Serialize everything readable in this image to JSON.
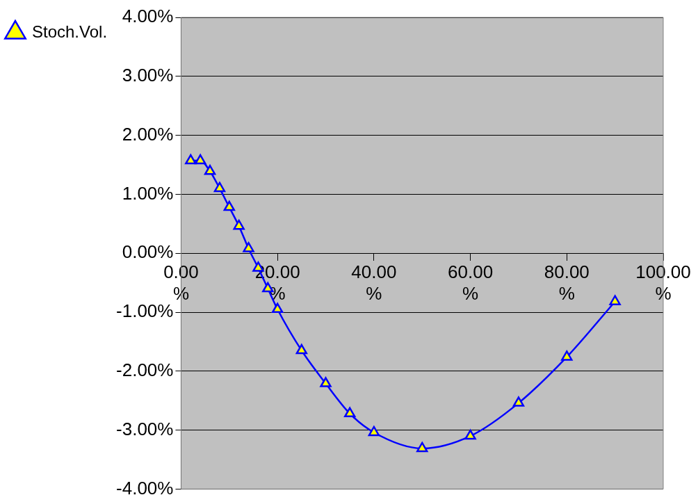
{
  "chart_data": {
    "type": "line",
    "x": [
      2,
      4,
      6,
      8,
      10,
      12,
      14,
      16,
      18,
      20,
      25,
      30,
      35,
      40,
      50,
      60,
      70,
      80,
      90
    ],
    "series": [
      {
        "name": "Stoch.Vol.",
        "color": "#0000ff",
        "values": [
          1.57,
          1.57,
          1.39,
          1.1,
          0.78,
          0.46,
          0.08,
          -0.25,
          -0.6,
          -0.95,
          -1.65,
          -2.21,
          -2.72,
          -3.04,
          -3.31,
          -3.1,
          -2.54,
          -1.76,
          -0.82
        ]
      }
    ],
    "xlim": [
      0,
      100
    ],
    "xticks": [
      {
        "value": 0,
        "label": "0.00%"
      },
      {
        "value": 20,
        "label": "20.00%"
      },
      {
        "value": 40,
        "label": "40.00%"
      },
      {
        "value": 60,
        "label": "60.00%"
      },
      {
        "value": 80,
        "label": "80.00%"
      },
      {
        "value": 100,
        "label": "100.00%"
      }
    ],
    "ylim": [
      -4,
      4
    ],
    "yticks": [
      {
        "value": -4,
        "label": "-4.00%"
      },
      {
        "value": -3,
        "label": "-3.00%"
      },
      {
        "value": -2,
        "label": "-2.00%"
      },
      {
        "value": -1,
        "label": "-1.00%"
      },
      {
        "value": 0,
        "label": "0.00%"
      },
      {
        "value": 1,
        "label": "1.00%"
      },
      {
        "value": 2,
        "label": "2.00%"
      },
      {
        "value": 3,
        "label": "3.00%"
      },
      {
        "value": 4,
        "label": "4.00%"
      }
    ],
    "grid": "y",
    "legend": "top left",
    "marker": "triangle",
    "line_style": "solid"
  }
}
